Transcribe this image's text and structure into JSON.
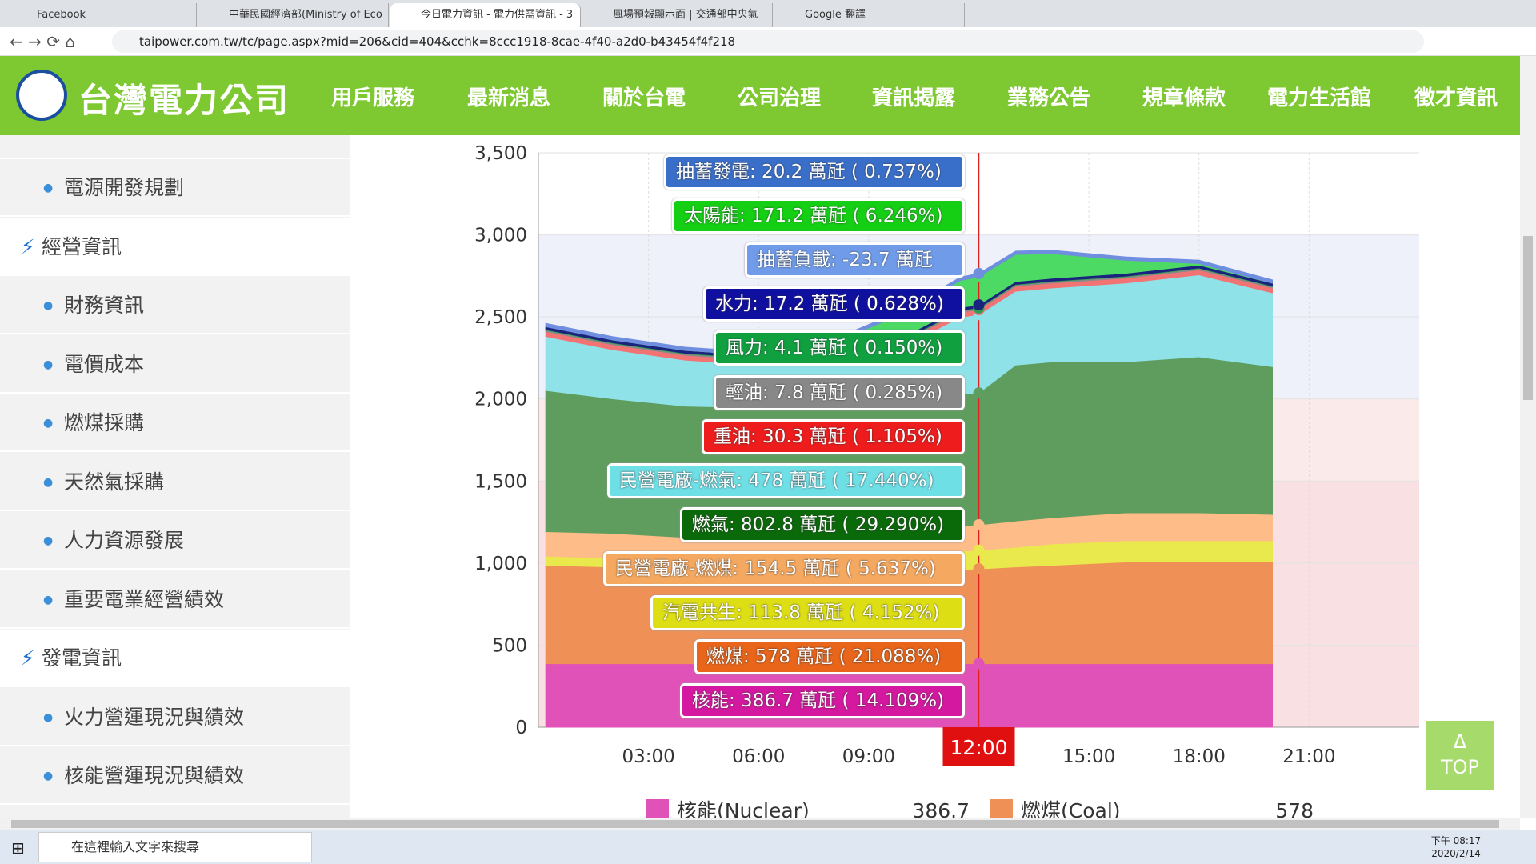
{
  "browser": {
    "tabs": [
      "Facebook",
      "中華民國經濟部(Ministry of Eco",
      "今日電力資訊 - 電力供需資訊 - 3",
      "風場預報顯示面 | 交通部中央氣",
      "Google 翻譯"
    ],
    "url": "taipower.com.tw/tc/page.aspx?mid=206&cid=404&cchk=8ccc1918-8cae-4f40-a2d0-b43454f4f218"
  },
  "header": {
    "logo": "台灣電力公司",
    "nav": [
      "用戶服務",
      "最新消息",
      "關於台電",
      "公司治理",
      "資訊揭露",
      "業務公告",
      "規章條款",
      "電力生活館",
      "徵才資訊"
    ]
  },
  "sidebar": [
    {
      "label": "電源開發規劃",
      "level": 2
    },
    {
      "label": "經營資訊",
      "level": 1
    },
    {
      "label": "財務資訊",
      "level": 2
    },
    {
      "label": "電價成本",
      "level": 2
    },
    {
      "label": "燃煤採購",
      "level": 2
    },
    {
      "label": "天然氣採購",
      "level": 2
    },
    {
      "label": "人力資源發展",
      "level": 2
    },
    {
      "label": "重要電業經營績效",
      "level": 2
    },
    {
      "label": "發電資訊",
      "level": 1
    },
    {
      "label": "火力營運現況與績效",
      "level": 2
    },
    {
      "label": "核能營運現況與績效",
      "level": 2
    }
  ],
  "chart_data": {
    "type": "stacked_area",
    "x": [
      0.2,
      2,
      4,
      6,
      8,
      10,
      11.5,
      12,
      13,
      14,
      16,
      18,
      20
    ],
    "xlim": [
      0,
      24
    ],
    "xticks": [
      {
        "value": 3,
        "label": "03:00"
      },
      {
        "value": 6,
        "label": "06:00"
      },
      {
        "value": 9,
        "label": "09:00"
      },
      {
        "value": 15,
        "label": "15:00"
      },
      {
        "value": 18,
        "label": "18:00"
      },
      {
        "value": 21,
        "label": "21:00"
      }
    ],
    "crosshair": {
      "value": 12,
      "label": "12:00"
    },
    "ylim": [
      0,
      3500
    ],
    "yticks": [
      0,
      500,
      {
        "value": 1000,
        "label": "1,000"
      },
      {
        "value": 1500,
        "label": "1,500"
      },
      {
        "value": 2000,
        "label": "2,000"
      },
      {
        "value": 2500,
        "label": "2,500"
      },
      {
        "value": 3000,
        "label": "3,000"
      },
      {
        "value": 3500,
        "label": "3,500"
      }
    ],
    "bands": [
      {
        "from": 0,
        "to": 1500,
        "color": "#f9e1e3"
      },
      {
        "from": 1500,
        "to": 2000,
        "color": "#fbeaea"
      },
      {
        "from": 2000,
        "to": 3000,
        "color": "#eef0fa"
      }
    ],
    "series": [
      {
        "name": "核能(Nuclear)",
        "color": "#e052b8",
        "values": [
          386.7,
          386.7,
          386.7,
          386.7,
          386.7,
          386.7,
          386.7,
          386.7,
          386.7,
          386.7,
          386.7,
          386.7,
          386.7
        ]
      },
      {
        "name": "燃煤(Coal)",
        "color": "#ef9156",
        "values": [
          600,
          590,
          570,
          560,
          560,
          570,
          575,
          578,
          590,
          600,
          620,
          620,
          620
        ]
      },
      {
        "color": "#e9e84c",
        "values": [
          55,
          55,
          50,
          50,
          55,
          60,
          110,
          114,
          120,
          130,
          130,
          130,
          130
        ]
      },
      {
        "color": "#fdbc88",
        "values": [
          150,
          150,
          150,
          150,
          150,
          150,
          155,
          154.5,
          160,
          160,
          170,
          170,
          160
        ]
      },
      {
        "color": "#5f9d5f",
        "values": [
          860,
          820,
          800,
          800,
          810,
          810,
          802,
          803,
          950,
          950,
          920,
          950,
          900
        ]
      },
      {
        "color": "#8fe2e8",
        "values": [
          330,
          300,
          280,
          260,
          280,
          350,
          470,
          478,
          450,
          450,
          480,
          500,
          450
        ]
      },
      {
        "color": "#f27373",
        "values": [
          30,
          30,
          30,
          30,
          30,
          30,
          30,
          30,
          30,
          30,
          30,
          30,
          30
        ]
      },
      {
        "color": "#8a8a8a",
        "values": [
          8,
          8,
          8,
          8,
          8,
          8,
          8,
          8,
          8,
          8,
          8,
          8,
          8
        ]
      },
      {
        "color": "#2e9e4e",
        "values": [
          4,
          4,
          4,
          4,
          4,
          4,
          4,
          4,
          4,
          4,
          4,
          4,
          4
        ]
      },
      {
        "color": "#1a237e",
        "values": [
          17,
          17,
          17,
          17,
          17,
          17,
          17,
          17,
          17,
          17,
          17,
          17,
          17
        ]
      },
      {
        "color": "#4cd964",
        "values": [
          0,
          0,
          0,
          0,
          40,
          140,
          165,
          171.2,
          165,
          150,
          80,
          10,
          0
        ]
      },
      {
        "color": "#6f8ee0",
        "values": [
          20,
          20,
          20,
          20,
          20,
          20,
          20,
          20,
          20,
          20,
          20,
          20,
          20
        ]
      }
    ],
    "legend_values": [
      "386.7",
      "578"
    ],
    "tooltip": [
      {
        "text": "抽蓄發電: 20.2 萬瓩 ( 0.737%)",
        "color": "#3a6fc9"
      },
      {
        "text": "太陽能: 171.2 萬瓩 ( 6.246%)",
        "color": "#14cf14"
      },
      {
        "text": "抽蓄負載: -23.7 萬瓩",
        "color": "#6f9be8"
      },
      {
        "text": "水力: 17.2 萬瓩 ( 0.628%)",
        "color": "#1010a0"
      },
      {
        "text": "風力: 4.1 萬瓩 ( 0.150%)",
        "color": "#10a040"
      },
      {
        "text": "輕油: 7.8 萬瓩 ( 0.285%)",
        "color": "#888888"
      },
      {
        "text": "重油: 30.3 萬瓩 ( 1.105%)",
        "color": "#ee1c1c"
      },
      {
        "text": "民營電廠-燃氣: 478 萬瓩 ( 17.440%)",
        "color": "#6fdfe6"
      },
      {
        "text": "燃氣: 802.8 萬瓩 ( 29.290%)",
        "color": "#0a6a0a"
      },
      {
        "text": "民營電廠-燃煤: 154.5 萬瓩 ( 5.637%)",
        "color": "#f5a860"
      },
      {
        "text": "汽電共生: 113.8 萬瓩 ( 4.152%)",
        "color": "#dede14"
      },
      {
        "text": "燃煤: 578 萬瓩 ( 21.088%)",
        "color": "#e8651a"
      },
      {
        "text": "核能: 386.7 萬瓩 ( 14.109%)",
        "color": "#d418a0"
      }
    ]
  },
  "top_button": [
    "Δ",
    "TOP"
  ],
  "taskbar": {
    "search": "在這裡輸入文字來搜尋",
    "time": "下午 08:17",
    "date": "2020/2/14"
  }
}
